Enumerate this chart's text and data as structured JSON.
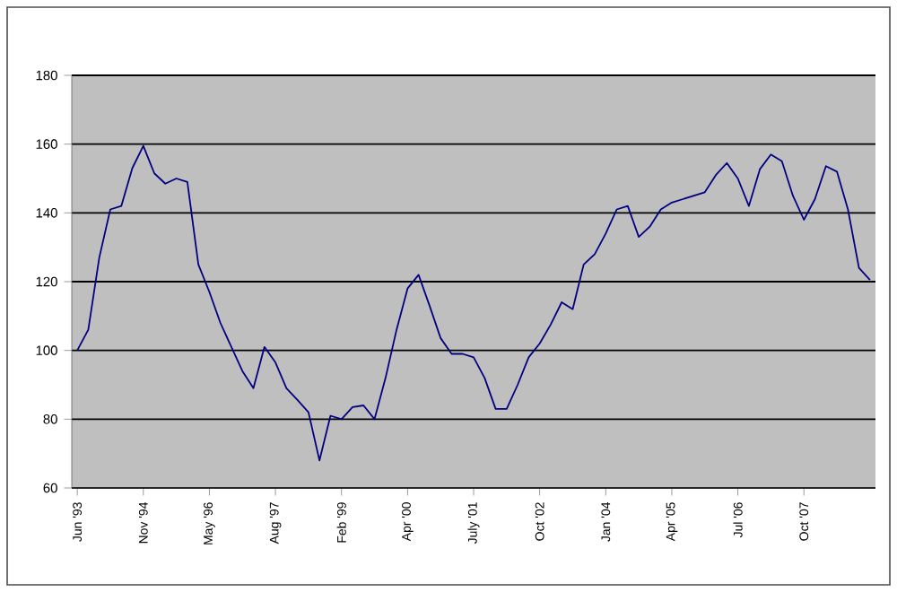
{
  "chart_data": {
    "type": "line",
    "categories": [
      "Jun '93",
      null,
      null,
      null,
      null,
      null,
      "Nov '94",
      null,
      null,
      null,
      null,
      null,
      "May '96",
      null,
      null,
      null,
      null,
      null,
      "Aug '97",
      null,
      null,
      null,
      null,
      null,
      "Feb '99",
      null,
      null,
      null,
      null,
      null,
      "Apr '00",
      null,
      null,
      null,
      null,
      null,
      "July '01",
      null,
      null,
      null,
      null,
      null,
      "Oct '02",
      null,
      null,
      null,
      null,
      null,
      "Jan '04",
      null,
      null,
      null,
      null,
      null,
      "Apr '05",
      null,
      null,
      null,
      null,
      null,
      "Jul '06",
      null,
      null,
      null,
      null,
      null,
      "Oct '07",
      null,
      null,
      null,
      null,
      null,
      null
    ],
    "series": [
      {
        "color": "#000080",
        "values": [
          100,
          106,
          127,
          141,
          142,
          153,
          159.5,
          151.5,
          148.5,
          150,
          149,
          125,
          117,
          108,
          101,
          94,
          89,
          101,
          96.5,
          89,
          85.6,
          82,
          68,
          81,
          80,
          83.5,
          84,
          80,
          92,
          106,
          118,
          122,
          113,
          103.6,
          99,
          99,
          98,
          92,
          83,
          83,
          90,
          98,
          102,
          107.5,
          114,
          112,
          125,
          128,
          134,
          141,
          142,
          133,
          136,
          141,
          143,
          144,
          145,
          146,
          151,
          154.5,
          150,
          142,
          152.7,
          157,
          155,
          145,
          138,
          144,
          153.6,
          152,
          141,
          124,
          120.5
        ]
      }
    ],
    "ylim": [
      60,
      180
    ],
    "yticks": [
      60,
      80,
      100,
      120,
      140,
      160,
      180
    ],
    "grid": "y",
    "marker": "none",
    "line_style": "solid"
  }
}
